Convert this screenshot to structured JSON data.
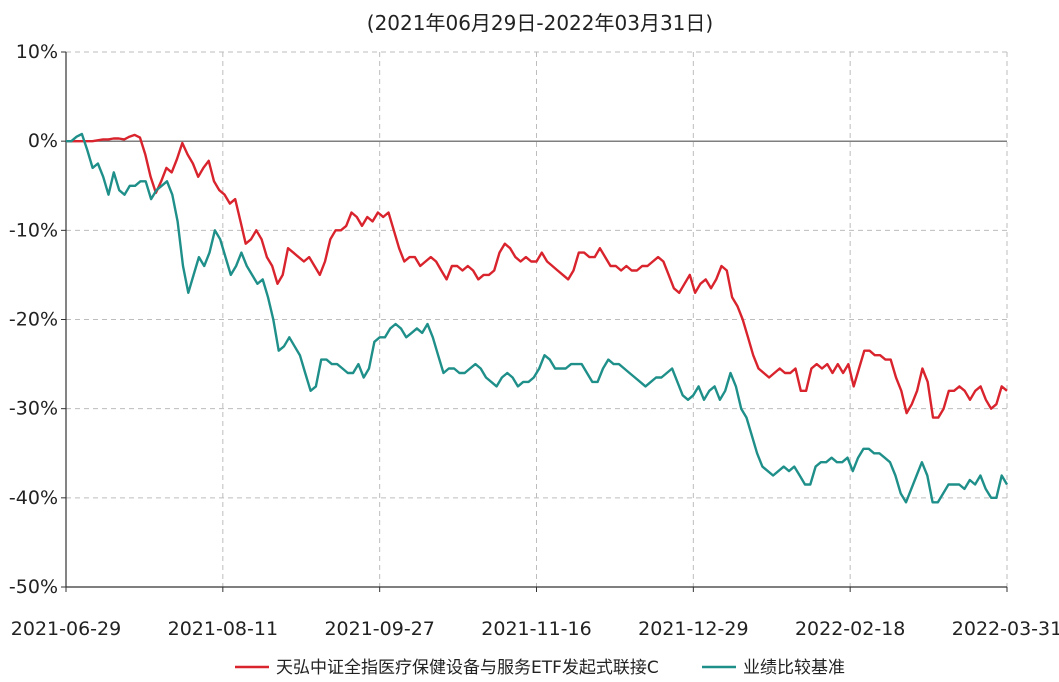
{
  "chart_data": {
    "type": "line",
    "title": "(2021年06月29日-2022年03月31日)",
    "xlabel": "",
    "ylabel": "",
    "ylim": [
      -50,
      10
    ],
    "y_ticks": [
      "10%",
      "0%",
      "-10%",
      "-20%",
      "-30%",
      "-40%",
      "-50%"
    ],
    "y_tick_values": [
      10,
      0,
      -10,
      -20,
      -30,
      -40,
      -50
    ],
    "x_ticks": [
      "2021-06-29",
      "2021-08-11",
      "2021-09-27",
      "2021-11-16",
      "2021-12-29",
      "2022-02-18",
      "2022-03-31"
    ],
    "grid": true,
    "legend_position": "bottom",
    "series": [
      {
        "name": "天弘中证全指医疗保健设备与服务ETF发起式联接C",
        "color": "#d9232d",
        "values": [
          0.0,
          0.0,
          0.0,
          0.0,
          0.0,
          0.0,
          0.1,
          0.2,
          0.2,
          0.3,
          0.3,
          0.2,
          0.5,
          0.7,
          0.4,
          -1.5,
          -4.0,
          -5.8,
          -4.5,
          -3.0,
          -3.5,
          -2.0,
          -0.2,
          -1.5,
          -2.5,
          -4.0,
          -3.0,
          -2.2,
          -4.5,
          -5.5,
          -6.0,
          -7.0,
          -6.5,
          -9.0,
          -11.5,
          -11.0,
          -10.0,
          -11.0,
          -13.0,
          -14.0,
          -16.0,
          -15.0,
          -12.0,
          -12.5,
          -13.0,
          -13.5,
          -13.0,
          -14.0,
          -15.0,
          -13.5,
          -11.0,
          -10.0,
          -10.0,
          -9.5,
          -8.0,
          -8.5,
          -9.5,
          -8.5,
          -9.0,
          -8.0,
          -8.5,
          -8.0,
          -10.0,
          -12.0,
          -13.5,
          -13.0,
          -13.0,
          -14.0,
          -13.5,
          -13.0,
          -13.5,
          -14.5,
          -15.5,
          -14.0,
          -14.0,
          -14.5,
          -14.0,
          -14.5,
          -15.5,
          -15.0,
          -15.0,
          -14.5,
          -12.5,
          -11.5,
          -12.0,
          -13.0,
          -13.5,
          -13.0,
          -13.5,
          -13.5,
          -12.5,
          -13.5,
          -14.0,
          -14.5,
          -15.0,
          -15.5,
          -14.5,
          -12.5,
          -12.5,
          -13.0,
          -13.0,
          -12.0,
          -13.0,
          -14.0,
          -14.0,
          -14.5,
          -14.0,
          -14.5,
          -14.5,
          -14.0,
          -14.0,
          -13.5,
          -13.0,
          -13.5,
          -15.0,
          -16.5,
          -17.0,
          -16.0,
          -15.0,
          -17.0,
          -16.0,
          -15.5,
          -16.5,
          -15.5,
          -14.0,
          -14.5,
          -17.5,
          -18.5,
          -20.0,
          -22.0,
          -24.0,
          -25.5,
          -26.0,
          -26.5,
          -26.0,
          -25.5,
          -26.0,
          -26.0,
          -25.5,
          -28.0,
          -28.0,
          -25.5,
          -25.0,
          -25.5,
          -25.0,
          -26.0,
          -25.0,
          -26.0,
          -25.0,
          -27.5,
          -25.5,
          -23.5,
          -23.5,
          -24.0,
          -24.0,
          -24.5,
          -24.5,
          -26.5,
          -28.0,
          -30.5,
          -29.5,
          -28.0,
          -25.5,
          -27.0,
          -31.0,
          -31.0,
          -30.0,
          -28.0,
          -28.0,
          -27.5,
          -28.0,
          -29.0,
          -28.0,
          -27.5,
          -29.0,
          -30.0,
          -29.5,
          -27.5,
          -28.0
        ]
      },
      {
        "name": "业绩比较基准",
        "color": "#1f8f8a",
        "values": [
          0.0,
          0.0,
          0.5,
          0.8,
          -1.0,
          -3.0,
          -2.5,
          -4.0,
          -6.0,
          -3.5,
          -5.5,
          -6.0,
          -5.0,
          -5.0,
          -4.5,
          -4.5,
          -6.5,
          -5.5,
          -5.0,
          -4.5,
          -6.0,
          -9.0,
          -14.0,
          -17.0,
          -15.0,
          -13.0,
          -14.0,
          -12.5,
          -10.0,
          -11.0,
          -13.0,
          -15.0,
          -14.0,
          -12.5,
          -14.0,
          -15.0,
          -16.0,
          -15.5,
          -17.5,
          -20.0,
          -23.5,
          -23.0,
          -22.0,
          -23.0,
          -24.0,
          -26.0,
          -28.0,
          -27.5,
          -24.5,
          -24.5,
          -25.0,
          -25.0,
          -25.5,
          -26.0,
          -26.0,
          -25.0,
          -26.5,
          -25.5,
          -22.5,
          -22.0,
          -22.0,
          -21.0,
          -20.5,
          -21.0,
          -22.0,
          -21.5,
          -21.0,
          -21.5,
          -20.5,
          -22.0,
          -24.0,
          -26.0,
          -25.5,
          -25.5,
          -26.0,
          -26.0,
          -25.5,
          -25.0,
          -25.5,
          -26.5,
          -27.0,
          -27.5,
          -26.5,
          -26.0,
          -26.5,
          -27.5,
          -27.0,
          -27.0,
          -26.5,
          -25.5,
          -24.0,
          -24.5,
          -25.5,
          -25.5,
          -25.5,
          -25.0,
          -25.0,
          -25.0,
          -26.0,
          -27.0,
          -27.0,
          -25.5,
          -24.5,
          -25.0,
          -25.0,
          -25.5,
          -26.0,
          -26.5,
          -27.0,
          -27.5,
          -27.0,
          -26.5,
          -26.5,
          -26.0,
          -25.5,
          -27.0,
          -28.5,
          -29.0,
          -28.5,
          -27.5,
          -29.0,
          -28.0,
          -27.5,
          -29.0,
          -28.0,
          -26.0,
          -27.5,
          -30.0,
          -31.0,
          -33.0,
          -35.0,
          -36.5,
          -37.0,
          -37.5,
          -37.0,
          -36.5,
          -37.0,
          -36.5,
          -37.5,
          -38.5,
          -38.5,
          -36.5,
          -36.0,
          -36.0,
          -35.5,
          -36.0,
          -36.0,
          -35.5,
          -37.0,
          -35.5,
          -34.5,
          -34.5,
          -35.0,
          -35.0,
          -35.5,
          -36.0,
          -37.5,
          -39.5,
          -40.5,
          -39.0,
          -37.5,
          -36.0,
          -37.5,
          -40.5,
          -40.5,
          -39.5,
          -38.5,
          -38.5,
          -38.5,
          -39.0,
          -38.0,
          -38.5,
          -37.5,
          -39.0,
          -40.0,
          -40.0,
          -37.5,
          -38.5
        ]
      }
    ]
  }
}
